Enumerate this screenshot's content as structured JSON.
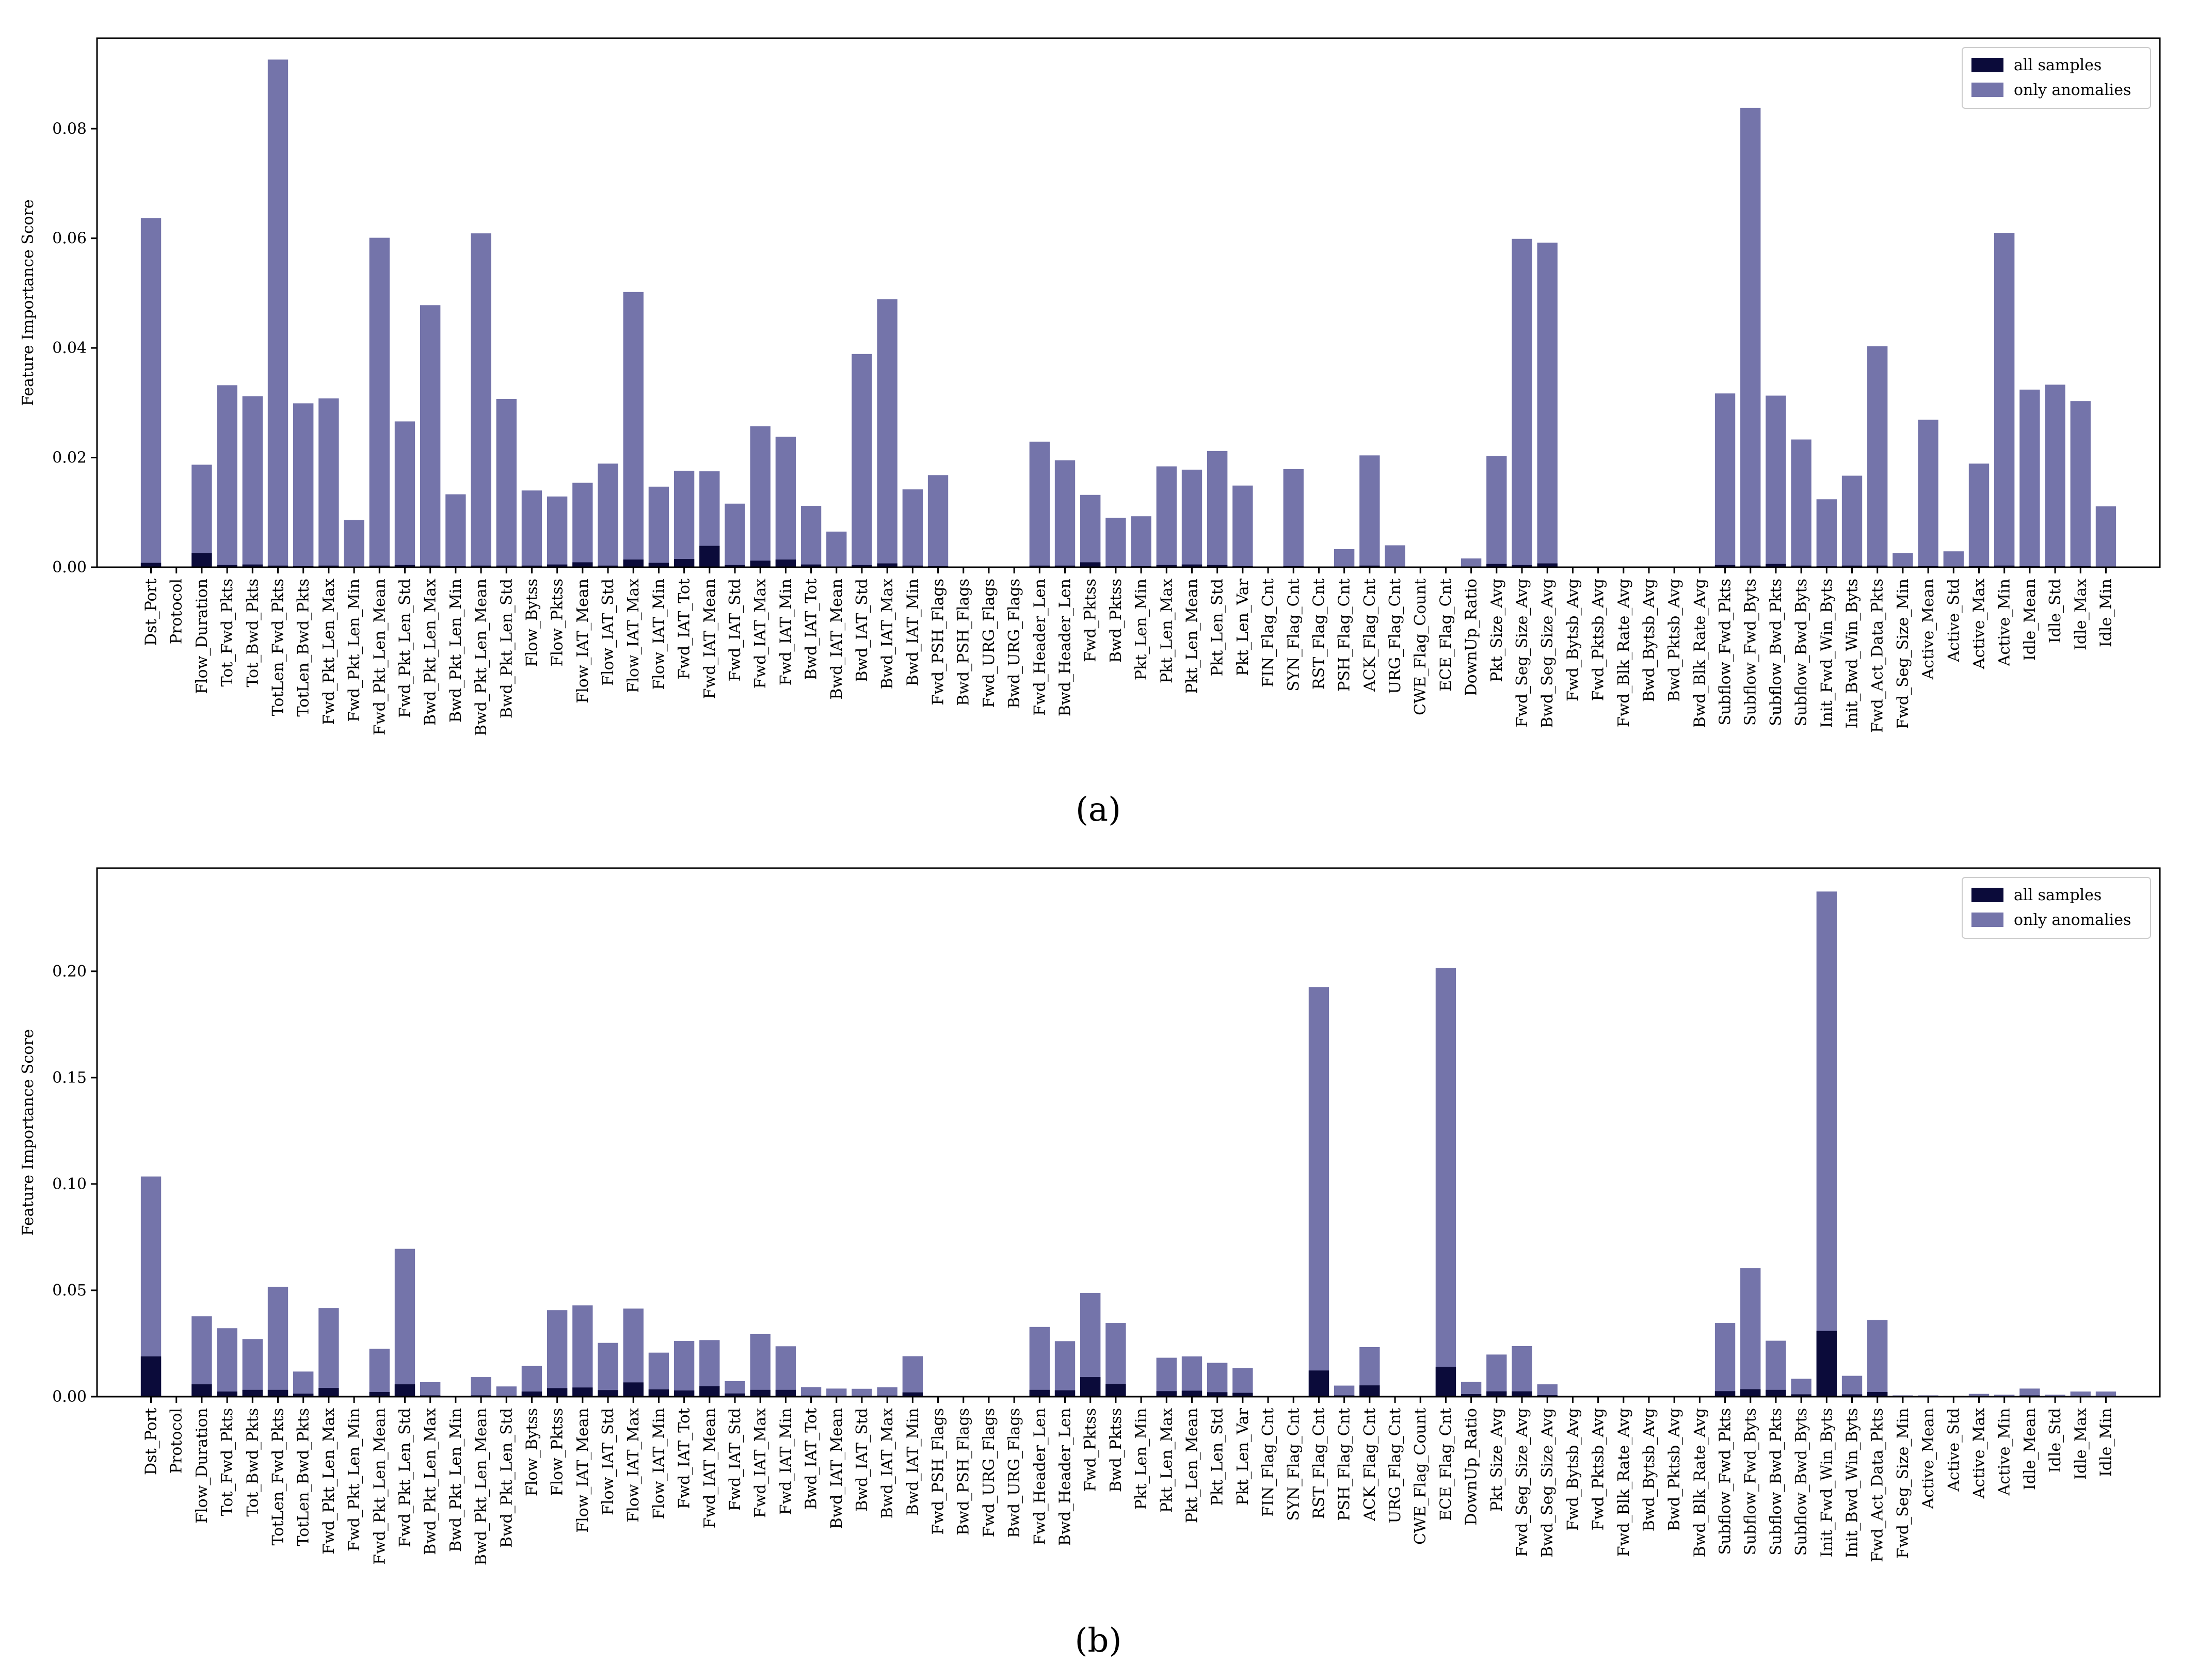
{
  "colors": {
    "all_samples": "#0b0b3a",
    "only_anomalies": "#7474aa",
    "axis": "#000000"
  },
  "features": [
    "Dst_Port",
    "Protocol",
    "Flow_Duration",
    "Tot_Fwd_Pkts",
    "Tot_Bwd_Pkts",
    "TotLen_Fwd_Pkts",
    "TotLen_Bwd_Pkts",
    "Fwd_Pkt_Len_Max",
    "Fwd_Pkt_Len_Min",
    "Fwd_Pkt_Len_Mean",
    "Fwd_Pkt_Len_Std",
    "Bwd_Pkt_Len_Max",
    "Bwd_Pkt_Len_Min",
    "Bwd_Pkt_Len_Mean",
    "Bwd_Pkt_Len_Std",
    "Flow_Bytss",
    "Flow_Pktss",
    "Flow_IAT_Mean",
    "Flow_IAT_Std",
    "Flow_IAT_Max",
    "Flow_IAT_Min",
    "Fwd_IAT_Tot",
    "Fwd_IAT_Mean",
    "Fwd_IAT_Std",
    "Fwd_IAT_Max",
    "Fwd_IAT_Min",
    "Bwd_IAT_Tot",
    "Bwd_IAT_Mean",
    "Bwd_IAT_Std",
    "Bwd_IAT_Max",
    "Bwd_IAT_Min",
    "Fwd_PSH_Flags",
    "Bwd_PSH_Flags",
    "Fwd_URG_Flags",
    "Bwd_URG_Flags",
    "Fwd_Header_Len",
    "Bwd_Header_Len",
    "Fwd_Pktss",
    "Bwd_Pktss",
    "Pkt_Len_Min",
    "Pkt_Len_Max",
    "Pkt_Len_Mean",
    "Pkt_Len_Std",
    "Pkt_Len_Var",
    "FIN_Flag_Cnt",
    "SYN_Flag_Cnt",
    "RST_Flag_Cnt",
    "PSH_Flag_Cnt",
    "ACK_Flag_Cnt",
    "URG_Flag_Cnt",
    "CWE_Flag_Count",
    "ECE_Flag_Cnt",
    "DownUp_Ratio",
    "Pkt_Size_Avg",
    "Fwd_Seg_Size_Avg",
    "Bwd_Seg_Size_Avg",
    "Fwd_Bytsb_Avg",
    "Fwd_Pktsb_Avg",
    "Fwd_Blk_Rate_Avg",
    "Bwd_Bytsb_Avg",
    "Bwd_Pktsb_Avg",
    "Bwd_Blk_Rate_Avg",
    "Subflow_Fwd_Pkts",
    "Subflow_Fwd_Byts",
    "Subflow_Bwd_Pkts",
    "Subflow_Bwd_Byts",
    "Init_Fwd_Win_Byts",
    "Init_Bwd_Win_Byts",
    "Fwd_Act_Data_Pkts",
    "Fwd_Seg_Size_Min",
    "Active_Mean",
    "Active_Std",
    "Active_Max",
    "Active_Min",
    "Idle_Mean",
    "Idle_Std",
    "Idle_Max",
    "Idle_Min"
  ],
  "chart_data": [
    {
      "type": "bar",
      "panel_label": "(a)",
      "ylabel": "Feature Importance Score",
      "ylim": [
        0,
        0.0965
      ],
      "yticks": [
        0.0,
        0.02,
        0.04,
        0.06,
        0.08
      ],
      "ytick_labels": [
        "0.00",
        "0.02",
        "0.04",
        "0.06",
        "0.08"
      ],
      "legend": {
        "position": "top-right",
        "entries": [
          "all samples",
          "only anomalies"
        ]
      },
      "series": [
        {
          "name": "only anomalies",
          "values": [
            0.0637,
            0,
            0.0187,
            0.0332,
            0.0312,
            0.0926,
            0.0299,
            0.0308,
            0.0086,
            0.0601,
            0.0266,
            0.0478,
            0.0133,
            0.0609,
            0.0307,
            0.014,
            0.0129,
            0.0154,
            0.0189,
            0.0502,
            0.0147,
            0.0176,
            0.0175,
            0.0116,
            0.0257,
            0.0238,
            0.0112,
            0.0065,
            0.0389,
            0.0489,
            0.0142,
            0.0168,
            0,
            0,
            0,
            0.0229,
            0.0195,
            0.0132,
            0.009,
            0.0093,
            0.0184,
            0.0178,
            0.0212,
            0.0149,
            0,
            0.0179,
            0,
            0.0033,
            0.0204,
            0.004,
            0,
            0,
            0.0016,
            0.0203,
            0.0599,
            0.0592,
            0,
            0,
            0,
            0,
            0,
            0,
            0.0317,
            0.0838,
            0.0313,
            0.0233,
            0.0124,
            0.0167,
            0.0403,
            0.0026,
            0.0269,
            0.0029,
            0.0189,
            0.061,
            0.0324,
            0.0333,
            0.0303,
            0.0111
          ]
        },
        {
          "name": "all samples",
          "values": [
            0.0008,
            0,
            0.0026,
            0.0004,
            0.0005,
            0.0003,
            0.0002,
            0.0003,
            0.0001,
            0.0003,
            0.0004,
            0.0003,
            0.0002,
            0.0003,
            0.0003,
            0.0003,
            0.0005,
            0.0009,
            0.0003,
            0.0014,
            0.0008,
            0.0015,
            0.0039,
            0.0004,
            0.0012,
            0.0014,
            0.0005,
            0.0001,
            0.0004,
            0.0007,
            0.0003,
            0.0002,
            0,
            0,
            0,
            0.0003,
            0.0003,
            0.0009,
            0.0002,
            0.0002,
            0.0004,
            0.0005,
            0.0004,
            0.0002,
            0,
            0.0002,
            0,
            0.0001,
            0.0003,
            0.0001,
            0,
            0,
            0.0001,
            0.0006,
            0.0004,
            0.0007,
            0,
            0,
            0,
            0,
            0,
            0,
            0.0004,
            0.0003,
            0.0006,
            0.0003,
            0.0002,
            0.0003,
            0.0003,
            0.0001,
            0.0002,
            0.0001,
            0.0002,
            0.0003,
            0.0002,
            0.0002,
            0.0002,
            0.0001
          ]
        }
      ]
    },
    {
      "type": "bar",
      "panel_label": "(b)",
      "ylabel": "Feature Importance Score",
      "ylim": [
        0,
        0.2485
      ],
      "yticks": [
        0.0,
        0.05,
        0.1,
        0.15,
        0.2
      ],
      "ytick_labels": [
        "0.00",
        "0.05",
        "0.10",
        "0.15",
        "0.20"
      ],
      "legend": {
        "position": "top-right",
        "entries": [
          "all samples",
          "only anomalies"
        ]
      },
      "series": [
        {
          "name": "only anomalies",
          "values": [
            0.1035,
            0,
            0.0378,
            0.0322,
            0.0271,
            0.0516,
            0.0118,
            0.0417,
            0,
            0.0225,
            0.0695,
            0.0068,
            0,
            0.0092,
            0.0048,
            0.0144,
            0.0407,
            0.0429,
            0.0253,
            0.0414,
            0.0207,
            0.0262,
            0.0266,
            0.0073,
            0.0294,
            0.0237,
            0.0045,
            0.0038,
            0.0037,
            0.0044,
            0.019,
            0,
            0,
            0,
            0,
            0.0328,
            0.0261,
            0.0488,
            0.0347,
            0,
            0.0183,
            0.0189,
            0.0159,
            0.0134,
            0,
            0,
            0.1926,
            0.0052,
            0.0233,
            0,
            0,
            0.2016,
            0.0069,
            0.0198,
            0.0238,
            0.0058,
            0,
            0,
            0,
            0,
            0,
            0,
            0.0347,
            0.0604,
            0.0263,
            0.0084,
            0.2375,
            0.0098,
            0.036,
            0.0006,
            0.0006,
            0.0004,
            0.0013,
            0.0009,
            0.0038,
            0.0009,
            0.0024,
            0.0024
          ]
        },
        {
          "name": "all samples",
          "values": [
            0.0189,
            0,
            0.0058,
            0.0024,
            0.0032,
            0.0032,
            0.0014,
            0.0041,
            0,
            0.0022,
            0.0058,
            0.0006,
            0,
            0.0006,
            0.0004,
            0.0024,
            0.004,
            0.0043,
            0.0031,
            0.0067,
            0.0034,
            0.0029,
            0.0049,
            0.0015,
            0.0032,
            0.0032,
            0.0005,
            0.0004,
            0.0004,
            0.0005,
            0.002,
            0,
            0,
            0,
            0,
            0.0032,
            0.003,
            0.0092,
            0.0059,
            0,
            0.0026,
            0.0028,
            0.0021,
            0.0018,
            0,
            0,
            0.0123,
            0.0006,
            0.0053,
            0,
            0,
            0.014,
            0.0012,
            0.0025,
            0.0025,
            0.0007,
            0,
            0,
            0,
            0,
            0,
            0,
            0.0026,
            0.0035,
            0.0032,
            0.0011,
            0.0309,
            0.0011,
            0.0022,
            0.0001,
            0.0001,
            0.0001,
            0.0002,
            0.0001,
            0.0006,
            0.0001,
            0.0003,
            0.0003
          ]
        }
      ]
    }
  ]
}
